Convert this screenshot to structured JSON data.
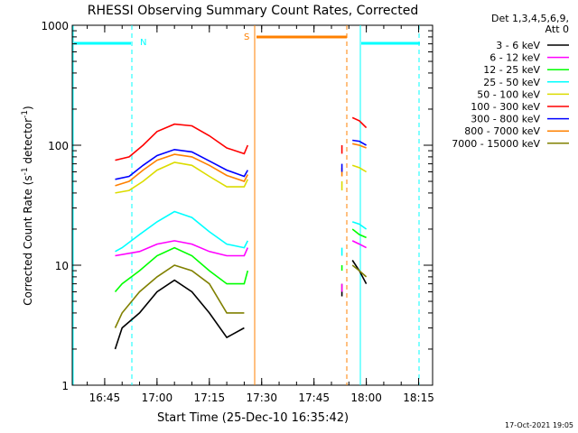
{
  "chart_data": {
    "type": "line",
    "title": "RHESSI Observing Summary Count Rates, Corrected",
    "xlabel": "Start Time (25-Dec-10 16:35:42)",
    "ylabel_main": "Corrected Count Rate (s",
    "ylabel_sup1": "-1",
    "ylabel_mid": " detector",
    "ylabel_sup2": "-1",
    "ylabel_end": ")",
    "yscale": "log",
    "ylim": [
      1,
      1000
    ],
    "xlim": [
      "16:35:42",
      "18:19"
    ],
    "x_ticks": [
      "16:45",
      "17:00",
      "17:15",
      "17:30",
      "17:45",
      "18:00",
      "18:15"
    ],
    "y_ticks": [
      "1",
      "10",
      "100",
      "1000"
    ],
    "legend_header": [
      "Det 1,3,4,5,6,9,",
      "Att 0"
    ],
    "footer_date": "17-Oct-2021 19:05",
    "markers": [
      {
        "label": "N",
        "color": "#00ffff"
      },
      {
        "label": "S",
        "color": "#ff8000"
      }
    ],
    "series": [
      {
        "name": "3 - 6 keV",
        "color": "#000000",
        "segments": [
          [
            [
              "16:48",
              2
            ],
            [
              "16:50",
              3
            ],
            [
              "16:55",
              4
            ],
            [
              "17:00",
              6
            ],
            [
              "17:05",
              7.5
            ],
            [
              "17:10",
              6
            ],
            [
              "17:15",
              4
            ],
            [
              "17:20",
              2.5
            ],
            [
              "17:25",
              3
            ]
          ],
          [
            [
              "17:53",
              5.5
            ],
            [
              "17:53",
              6
            ]
          ],
          [
            [
              "17:56",
              11
            ],
            [
              "17:58",
              9
            ],
            [
              "18:00",
              7
            ]
          ]
        ]
      },
      {
        "name": "6 - 12 keV",
        "color": "#ff00ff",
        "segments": [
          [
            [
              "16:48",
              12
            ],
            [
              "16:55",
              13
            ],
            [
              "17:00",
              15
            ],
            [
              "17:05",
              16
            ],
            [
              "17:10",
              15
            ],
            [
              "17:15",
              13
            ],
            [
              "17:20",
              12
            ],
            [
              "17:25",
              12
            ],
            [
              "17:26",
              14
            ]
          ],
          [
            [
              "17:53",
              6
            ],
            [
              "17:53",
              7
            ]
          ],
          [
            [
              "17:56",
              16
            ],
            [
              "17:58",
              15
            ],
            [
              "18:00",
              14
            ]
          ]
        ]
      },
      {
        "name": "12 - 25 keV",
        "color": "#00ff00",
        "segments": [
          [
            [
              "16:48",
              6
            ],
            [
              "16:50",
              7
            ],
            [
              "16:55",
              9
            ],
            [
              "17:00",
              12
            ],
            [
              "17:05",
              14
            ],
            [
              "17:10",
              12
            ],
            [
              "17:15",
              9
            ],
            [
              "17:20",
              7
            ],
            [
              "17:25",
              7
            ],
            [
              "17:26",
              9
            ]
          ],
          [
            [
              "17:53",
              9
            ],
            [
              "17:53",
              10
            ]
          ],
          [
            [
              "17:56",
              20
            ],
            [
              "17:58",
              18
            ],
            [
              "18:00",
              17
            ]
          ]
        ]
      },
      {
        "name": "25 - 50 keV",
        "color": "#00ffff",
        "segments": [
          [
            [
              "16:48",
              13
            ],
            [
              "16:50",
              14
            ],
            [
              "16:55",
              18
            ],
            [
              "17:00",
              23
            ],
            [
              "17:05",
              28
            ],
            [
              "17:10",
              25
            ],
            [
              "17:15",
              19
            ],
            [
              "17:20",
              15
            ],
            [
              "17:25",
              14
            ],
            [
              "17:26",
              16
            ]
          ],
          [
            [
              "17:53",
              12
            ],
            [
              "17:53",
              14
            ]
          ],
          [
            [
              "17:56",
              23
            ],
            [
              "17:58",
              22
            ],
            [
              "18:00",
              20
            ]
          ]
        ]
      },
      {
        "name": "50 - 100 keV",
        "color": "#dcdc00",
        "segments": [
          [
            [
              "16:48",
              40
            ],
            [
              "16:52",
              42
            ],
            [
              "16:56",
              50
            ],
            [
              "17:00",
              62
            ],
            [
              "17:05",
              72
            ],
            [
              "17:10",
              68
            ],
            [
              "17:15",
              55
            ],
            [
              "17:20",
              45
            ],
            [
              "17:25",
              45
            ],
            [
              "17:26",
              52
            ]
          ],
          [
            [
              "17:53",
              42
            ],
            [
              "17:53",
              50
            ]
          ],
          [
            [
              "17:56",
              68
            ],
            [
              "17:58",
              65
            ],
            [
              "18:00",
              60
            ]
          ]
        ]
      },
      {
        "name": "100 - 300 keV",
        "color": "#ff0000",
        "segments": [
          [
            [
              "16:48",
              75
            ],
            [
              "16:52",
              80
            ],
            [
              "16:56",
              100
            ],
            [
              "17:00",
              130
            ],
            [
              "17:05",
              150
            ],
            [
              "17:10",
              145
            ],
            [
              "17:15",
              120
            ],
            [
              "17:20",
              95
            ],
            [
              "17:25",
              85
            ],
            [
              "17:26",
              100
            ]
          ],
          [
            [
              "17:53",
              85
            ],
            [
              "17:53",
              100
            ]
          ],
          [
            [
              "17:56",
              170
            ],
            [
              "17:58",
              160
            ],
            [
              "18:00",
              140
            ]
          ]
        ]
      },
      {
        "name": "300 - 800 keV",
        "color": "#0000ff",
        "segments": [
          [
            [
              "16:48",
              52
            ],
            [
              "16:52",
              55
            ],
            [
              "16:56",
              68
            ],
            [
              "17:00",
              82
            ],
            [
              "17:05",
              92
            ],
            [
              "17:10",
              88
            ],
            [
              "17:15",
              74
            ],
            [
              "17:20",
              62
            ],
            [
              "17:25",
              55
            ],
            [
              "17:26",
              62
            ]
          ],
          [
            [
              "17:53",
              60
            ],
            [
              "17:53",
              70
            ]
          ],
          [
            [
              "17:56",
              110
            ],
            [
              "17:58",
              108
            ],
            [
              "18:00",
              100
            ]
          ]
        ]
      },
      {
        "name": "800 - 7000 keV",
        "color": "#ff8000",
        "segments": [
          [
            [
              "16:48",
              46
            ],
            [
              "16:52",
              50
            ],
            [
              "16:56",
              62
            ],
            [
              "17:00",
              75
            ],
            [
              "17:05",
              84
            ],
            [
              "17:10",
              80
            ],
            [
              "17:15",
              68
            ],
            [
              "17:20",
              56
            ],
            [
              "17:25",
              50
            ],
            [
              "17:26",
              57
            ]
          ],
          [
            [
              "17:53",
              55
            ],
            [
              "17:53",
              65
            ]
          ],
          [
            [
              "17:56",
              103
            ],
            [
              "17:58",
              100
            ],
            [
              "18:00",
              95
            ]
          ]
        ]
      },
      {
        "name": "7000 - 15000 keV",
        "color": "#808000",
        "segments": [
          [
            [
              "16:48",
              3
            ],
            [
              "16:50",
              4
            ],
            [
              "16:55",
              6
            ],
            [
              "17:00",
              8
            ],
            [
              "17:05",
              10
            ],
            [
              "17:10",
              9
            ],
            [
              "17:15",
              7
            ],
            [
              "17:20",
              4
            ],
            [
              "17:25",
              4
            ]
          ],
          [
            [
              "17:53",
              6
            ],
            [
              "17:53",
              7
            ]
          ],
          [
            [
              "17:56",
              10
            ],
            [
              "17:58",
              9
            ],
            [
              "18:00",
              8
            ]
          ]
        ]
      }
    ]
  }
}
